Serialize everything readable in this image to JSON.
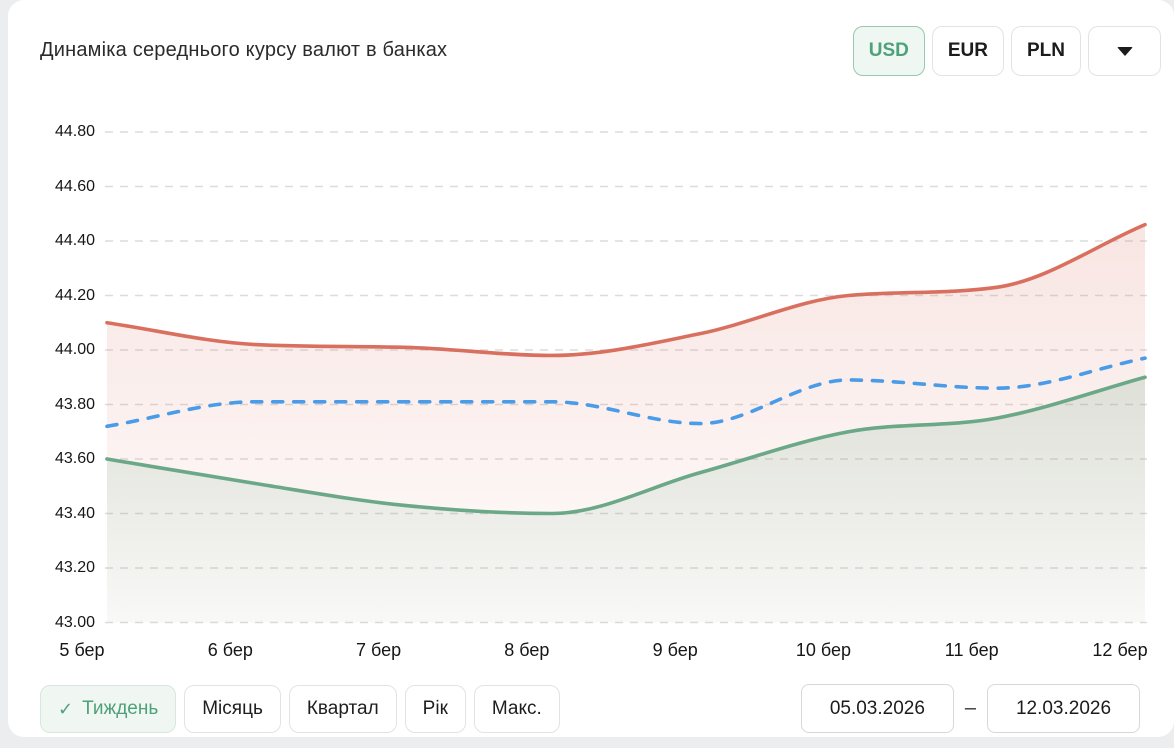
{
  "page": {
    "background": "#ecedee",
    "card_background": "#ffffff"
  },
  "header": {
    "title": "Динаміка середнього курсу валют в банках",
    "currency_tabs": [
      {
        "label": "USD",
        "selected": true
      },
      {
        "label": "EUR",
        "selected": false
      },
      {
        "label": "PLN",
        "selected": false
      }
    ],
    "currency_dropdown_icon": "chevron-down-icon"
  },
  "chart_data": {
    "type": "area",
    "title": "Динаміка середнього курсу валют в банках",
    "legend": "none",
    "grid": "horizontal-dashed",
    "x_categories": [
      "5 бер",
      "6 бер",
      "7 бер",
      "8 бер",
      "9 бер",
      "10 бер",
      "11 бер",
      "12 бер"
    ],
    "y_axis": {
      "min": 43.0,
      "max": 44.8,
      "step": 0.2,
      "tick_labels": [
        "44.80",
        "44.60",
        "44.40",
        "44.20",
        "44.00",
        "43.80",
        "43.60",
        "43.40",
        "43.20",
        "43.00"
      ]
    },
    "series": [
      {
        "name": "upper-red-solid",
        "color": "#d9705f",
        "line_style": "solid",
        "fill": true,
        "fill_opacity_top": 0.18,
        "fill_opacity_bottom": 0.02,
        "values": [
          44.1,
          44.02,
          44.01,
          43.98,
          44.06,
          44.2,
          44.23,
          44.46
        ]
      },
      {
        "name": "middle-blue-dashed",
        "color": "#4a9be8",
        "line_style": "dashed",
        "fill": false,
        "values": [
          43.72,
          43.81,
          43.81,
          43.81,
          43.73,
          43.89,
          43.86,
          43.97
        ]
      },
      {
        "name": "lower-green-solid",
        "color": "#6ba888",
        "line_style": "solid",
        "fill": true,
        "fill_opacity_top": 0.2,
        "fill_opacity_bottom": 0.04,
        "values": [
          43.6,
          43.51,
          43.43,
          43.4,
          43.55,
          43.7,
          43.75,
          43.9
        ]
      }
    ]
  },
  "footer": {
    "period_tabs": [
      {
        "label": "Тиждень",
        "selected": true
      },
      {
        "label": "Місяць",
        "selected": false
      },
      {
        "label": "Квартал",
        "selected": false
      },
      {
        "label": "Рік",
        "selected": false
      },
      {
        "label": "Макс.",
        "selected": false
      }
    ],
    "check_icon": "✓",
    "date_from": "05.03.2026",
    "date_separator": "–",
    "date_to": "12.03.2026"
  },
  "colors": {
    "accent_green": "#4fa179",
    "accent_green_bg": "#eff7f2",
    "grid_line": "#dcdcdc",
    "axis_text": "#161616"
  }
}
